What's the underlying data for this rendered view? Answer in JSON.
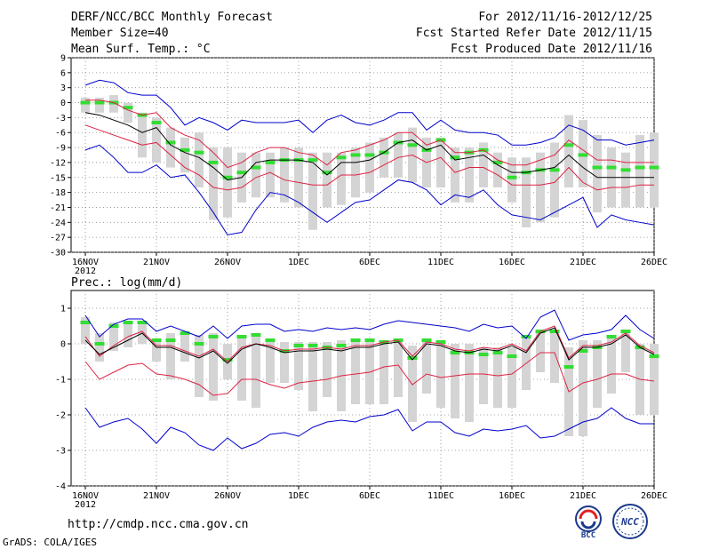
{
  "header": {
    "title": "DERF/NCC/BCC Monthly Forecast",
    "member_size": "Member Size=40",
    "variable": "Mean Surf. Temp.: °C",
    "period": "For 2012/11/16-2012/12/25",
    "start_date": "Fcst Started Refer Date 2012/11/15",
    "produced_date": "Fcst Produced Date 2012/11/16"
  },
  "footer": {
    "url": "http://cmdp.ncc.cma.gov.cn",
    "credit": "GrADS: COLA/IGES",
    "logo1_text": "BCC",
    "logo2_text": "NCC"
  },
  "colors": {
    "box": "#d4d4d4",
    "median": "#33dd33",
    "mean": "#000000",
    "spread": "#dd2244",
    "range": "#0000cc",
    "grid": "#888888"
  },
  "chart_data": [
    {
      "type": "line",
      "title": "Mean Surf. Temp.: °C",
      "x_tick_labels": [
        "16NOV",
        "21NOV",
        "26NOV",
        "1DEC",
        "6DEC",
        "11DEC",
        "16DEC",
        "21DEC",
        "26DEC"
      ],
      "x_year_label": "2012",
      "day_range": [
        1,
        41
      ],
      "ylim": [
        -30,
        9
      ],
      "yticks": [
        9,
        6,
        3,
        0,
        -3,
        -6,
        -9,
        -12,
        -15,
        -18,
        -21,
        -24,
        -27,
        -30
      ],
      "series": [
        {
          "name": "max",
          "values": [
            -9.5,
            -8.5,
            -11.0,
            -14.0,
            -14.0,
            -12.5,
            -15.0,
            -14.5,
            -18.0,
            -22.0,
            -26.5,
            -26.0,
            -21.5,
            -18.0,
            -18.5,
            -20.0,
            -22.0,
            -24.0,
            -22.0,
            -20.0,
            -19.5,
            -17.5,
            -15.5,
            -16.0,
            -17.5,
            -20.5,
            -18.5,
            -19.0,
            -17.5,
            -20.5,
            -22.5,
            -23.0,
            -23.5,
            -22.0,
            -20.5,
            -19.0,
            -25.0,
            -22.5,
            -23.5,
            -24.0,
            -24.5
          ]
        },
        {
          "name": "upper",
          "values": [
            3.5,
            4.5,
            4.0,
            2.0,
            1.5,
            1.5,
            -1.0,
            -4.5,
            -3.0,
            -4.0,
            -5.5,
            -3.5,
            -4.0,
            -4.0,
            -4.0,
            -3.5,
            -6.0,
            -3.5,
            -2.5,
            -4.0,
            -4.5,
            -3.5,
            -2.0,
            -2.0,
            -5.5,
            -3.5,
            -5.5,
            -6.0,
            -6.0,
            -6.5,
            -8.5,
            -8.5,
            -8.0,
            -7.0,
            -4.5,
            -5.5,
            -7.5,
            -7.5,
            -8.5,
            -8.0,
            -7.5
          ]
        },
        {
          "name": "spread_hi",
          "values": [
            0.5,
            0.5,
            0.0,
            -1.5,
            -2.5,
            -2.0,
            -5.0,
            -6.5,
            -7.5,
            -10.0,
            -13.0,
            -12.0,
            -10.0,
            -9.0,
            -9.0,
            -10.0,
            -10.5,
            -12.5,
            -10.0,
            -9.5,
            -8.5,
            -7.5,
            -6.0,
            -6.0,
            -8.5,
            -7.5,
            -10.0,
            -10.0,
            -9.5,
            -11.5,
            -12.5,
            -12.5,
            -11.5,
            -10.5,
            -7.5,
            -9.5,
            -11.5,
            -11.5,
            -12.0,
            -12.0,
            -12.0
          ]
        },
        {
          "name": "mean",
          "values": [
            -2.0,
            -2.5,
            -3.5,
            -4.5,
            -6.0,
            -5.0,
            -8.5,
            -10.0,
            -11.0,
            -13.0,
            -15.5,
            -15.0,
            -12.0,
            -11.5,
            -11.5,
            -11.5,
            -12.0,
            -14.5,
            -12.0,
            -12.0,
            -11.5,
            -10.0,
            -8.0,
            -7.5,
            -9.5,
            -8.5,
            -11.5,
            -11.0,
            -10.5,
            -12.5,
            -14.0,
            -14.0,
            -13.5,
            -13.0,
            -10.5,
            -13.0,
            -15.0,
            -15.0,
            -15.0,
            -15.0,
            -15.0
          ]
        },
        {
          "name": "spread_lo",
          "values": [
            -4.5,
            -5.5,
            -6.5,
            -7.5,
            -8.5,
            -8.0,
            -10.5,
            -13.0,
            -14.5,
            -17.0,
            -17.5,
            -17.0,
            -15.0,
            -14.0,
            -15.5,
            -16.0,
            -16.5,
            -16.5,
            -14.5,
            -14.5,
            -14.0,
            -12.5,
            -11.0,
            -10.5,
            -12.0,
            -11.0,
            -14.0,
            -13.0,
            -13.0,
            -14.5,
            -16.5,
            -16.5,
            -16.5,
            -16.0,
            -13.0,
            -16.0,
            -17.5,
            -17.0,
            -17.0,
            -16.5,
            -16.5
          ]
        },
        {
          "name": "median",
          "values": [
            0.0,
            0.0,
            0.0,
            -1.0,
            -2.5,
            -4.0,
            -8.0,
            -9.5,
            -10.0,
            -12.0,
            -15.0,
            -14.0,
            -13.0,
            -12.0,
            -11.5,
            -11.5,
            -11.5,
            -14.0,
            -11.0,
            -10.5,
            -10.5,
            -10.0,
            -8.0,
            -8.5,
            -9.5,
            -7.5,
            -11.0,
            -10.0,
            -9.5,
            -12.0,
            -15.0,
            -14.0,
            -13.5,
            -13.5,
            -8.5,
            -10.5,
            -13.0,
            -13.0,
            -13.5,
            -13.0,
            -13.0
          ]
        },
        {
          "name": "box_top",
          "values": [
            1.0,
            1.0,
            1.5,
            0.0,
            -2.0,
            -3.0,
            -5.0,
            -7.0,
            -6.0,
            -9.0,
            -9.0,
            -10.0,
            -10.0,
            -10.0,
            -9.0,
            -9.0,
            -10.0,
            -10.0,
            -10.0,
            -9.0,
            -8.0,
            -7.0,
            -6.0,
            -5.0,
            -7.0,
            -7.0,
            -9.0,
            -9.0,
            -8.0,
            -10.0,
            -11.0,
            -11.0,
            -10.0,
            -8.0,
            -2.5,
            -3.5,
            -6.5,
            -9.0,
            -10.0,
            -6.5,
            -6.0
          ]
        },
        {
          "name": "box_bottom",
          "values": [
            -2.0,
            -2.0,
            -2.0,
            -4.0,
            -11.0,
            -12.0,
            -13.0,
            -14.0,
            -17.0,
            -23.5,
            -23.0,
            -20.0,
            -19.0,
            -19.0,
            -20.0,
            -21.0,
            -25.5,
            -21.0,
            -20.5,
            -19.0,
            -18.0,
            -15.0,
            -15.0,
            -16.0,
            -17.0,
            -17.0,
            -20.0,
            -20.0,
            -17.0,
            -17.0,
            -20.0,
            -25.0,
            -24.0,
            -23.0,
            -17.0,
            -17.0,
            -22.0,
            -21.0,
            -21.0,
            -21.0,
            -21.0
          ]
        }
      ]
    },
    {
      "type": "line",
      "title": "Prec.: log(mm/d)",
      "x_tick_labels": [
        "16NOV",
        "21NOV",
        "26NOV",
        "1DEC",
        "6DEC",
        "11DEC",
        "16DEC",
        "21DEC",
        "26DEC"
      ],
      "x_year_label": "2012",
      "day_range": [
        1,
        41
      ],
      "ylim": [
        -4,
        1.5
      ],
      "yticks": [
        1,
        0,
        -1,
        -2,
        -3,
        -4
      ],
      "series": [
        {
          "name": "max",
          "values": [
            -1.8,
            -2.35,
            -2.2,
            -2.1,
            -2.4,
            -2.8,
            -2.35,
            -2.5,
            -2.85,
            -3.0,
            -2.65,
            -2.95,
            -2.8,
            -2.55,
            -2.5,
            -2.6,
            -2.35,
            -2.2,
            -2.15,
            -2.2,
            -2.05,
            -2.0,
            -1.85,
            -2.45,
            -2.2,
            -2.2,
            -2.5,
            -2.6,
            -2.4,
            -2.45,
            -2.4,
            -2.3,
            -2.65,
            -2.6,
            -2.4,
            -2.2,
            -2.1,
            -1.8,
            -2.1,
            -2.25,
            -2.25
          ]
        },
        {
          "name": "upper",
          "values": [
            0.8,
            0.2,
            0.55,
            0.7,
            0.7,
            0.35,
            0.5,
            0.35,
            0.2,
            0.5,
            0.15,
            0.5,
            0.55,
            0.55,
            0.35,
            0.4,
            0.35,
            0.45,
            0.4,
            0.45,
            0.4,
            0.55,
            0.65,
            0.6,
            0.55,
            0.5,
            0.45,
            0.35,
            0.55,
            0.45,
            0.5,
            0.15,
            0.75,
            0.95,
            0.1,
            0.25,
            0.3,
            0.4,
            0.8,
            0.4,
            0.15
          ]
        },
        {
          "name": "spread_hi",
          "values": [
            0.2,
            -0.35,
            -0.05,
            0.2,
            0.35,
            -0.05,
            -0.05,
            -0.2,
            -0.35,
            -0.15,
            -0.5,
            -0.1,
            0.0,
            -0.05,
            -0.2,
            -0.15,
            -0.15,
            -0.1,
            -0.15,
            -0.05,
            -0.05,
            0.05,
            0.1,
            -0.35,
            0.05,
            0.0,
            -0.15,
            -0.2,
            -0.1,
            -0.15,
            0.0,
            -0.2,
            0.35,
            0.5,
            -0.4,
            -0.05,
            -0.05,
            0.05,
            0.3,
            -0.05,
            -0.25
          ]
        },
        {
          "name": "mean",
          "values": [
            0.1,
            -0.3,
            -0.1,
            0.1,
            0.3,
            -0.1,
            -0.1,
            -0.25,
            -0.4,
            -0.2,
            -0.55,
            -0.15,
            0.0,
            -0.1,
            -0.25,
            -0.2,
            -0.2,
            -0.15,
            -0.2,
            -0.1,
            -0.1,
            0.0,
            0.05,
            -0.45,
            0.0,
            -0.05,
            -0.2,
            -0.25,
            -0.15,
            -0.2,
            -0.05,
            -0.25,
            0.3,
            0.45,
            -0.45,
            -0.1,
            -0.1,
            0.0,
            0.25,
            -0.1,
            -0.3
          ]
        },
        {
          "name": "spread_lo",
          "values": [
            -0.5,
            -1.0,
            -0.8,
            -0.6,
            -0.55,
            -0.85,
            -0.9,
            -1.0,
            -1.15,
            -1.45,
            -1.4,
            -1.0,
            -1.0,
            -1.15,
            -1.25,
            -1.1,
            -1.05,
            -1.0,
            -0.9,
            -0.85,
            -0.8,
            -0.65,
            -0.6,
            -1.15,
            -0.85,
            -0.95,
            -0.9,
            -0.85,
            -0.85,
            -0.9,
            -0.85,
            -0.55,
            -0.25,
            -0.25,
            -1.35,
            -1.1,
            -1.0,
            -0.85,
            -0.85,
            -1.0,
            -1.05
          ]
        },
        {
          "name": "median",
          "values": [
            0.6,
            0.0,
            0.5,
            0.6,
            0.6,
            0.1,
            0.1,
            0.3,
            0.0,
            0.2,
            -0.45,
            0.2,
            0.25,
            0.1,
            -0.2,
            -0.05,
            -0.05,
            -0.1,
            -0.05,
            0.1,
            0.1,
            0.05,
            0.1,
            -0.4,
            0.1,
            0.05,
            -0.25,
            -0.25,
            -0.3,
            -0.25,
            -0.35,
            0.2,
            0.35,
            0.35,
            -0.65,
            -0.2,
            -0.1,
            0.2,
            0.35,
            -0.1,
            -0.35
          ]
        },
        {
          "name": "box_top",
          "values": [
            0.75,
            0.3,
            0.6,
            0.6,
            0.6,
            0.1,
            0.3,
            0.3,
            0.25,
            0.3,
            0.0,
            0.25,
            0.25,
            0.15,
            0.05,
            0.05,
            0.05,
            0.05,
            0.1,
            0.1,
            0.1,
            0.1,
            0.1,
            -0.05,
            0.1,
            0.0,
            0.0,
            0.0,
            -0.1,
            -0.1,
            -0.1,
            0.2,
            0.4,
            0.35,
            -0.1,
            0.1,
            0.1,
            0.2,
            0.4,
            0.0,
            0.0
          ]
        },
        {
          "name": "box_bottom",
          "values": [
            0.0,
            -0.5,
            -0.2,
            -0.1,
            0.0,
            -0.5,
            -1.0,
            -0.5,
            -1.5,
            -1.6,
            -1.0,
            -1.6,
            -1.8,
            -1.1,
            -1.1,
            -1.3,
            -1.9,
            -1.5,
            -1.9,
            -1.7,
            -1.7,
            -1.7,
            -1.5,
            -2.2,
            -1.4,
            -1.8,
            -2.1,
            -2.2,
            -1.7,
            -1.8,
            -1.8,
            -1.3,
            -0.8,
            -1.1,
            -2.6,
            -2.6,
            -1.8,
            -1.4,
            -0.8,
            -2.0,
            -2.0
          ]
        }
      ]
    }
  ]
}
